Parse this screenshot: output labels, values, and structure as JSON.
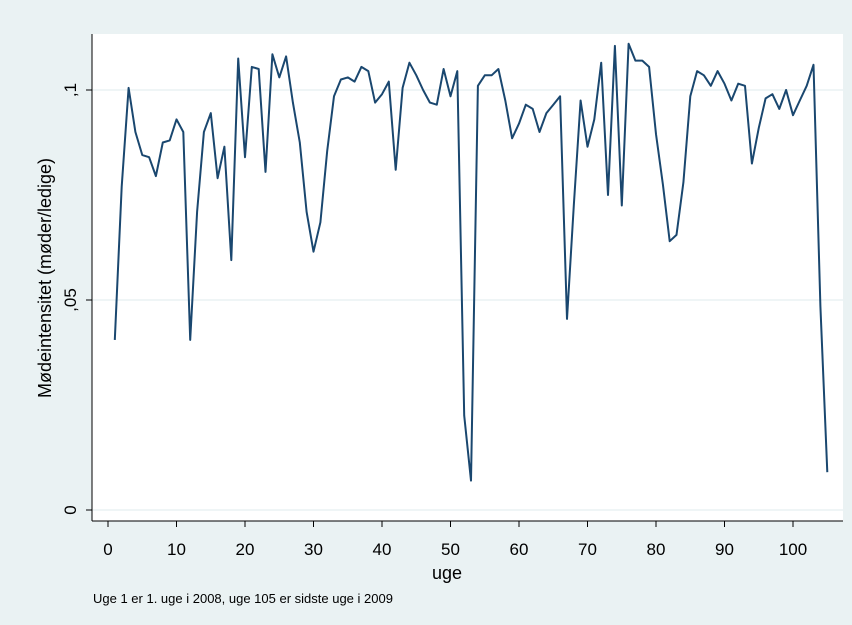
{
  "chart_data": {
    "type": "line",
    "xlabel": "uge",
    "ylabel": "Mødeintensitet (møder/ledige)",
    "note": "Uge 1 er 1. uge i 2008, uge 105 er sidste uge i 2009",
    "xlim": [
      1,
      105
    ],
    "ylim": [
      0,
      0.11
    ],
    "x_ticks": [
      0,
      10,
      20,
      30,
      40,
      50,
      60,
      70,
      80,
      90,
      100
    ],
    "x_tick_labels": [
      "0",
      "10",
      "20",
      "30",
      "40",
      "50",
      "60",
      "70",
      "80",
      "90",
      "100"
    ],
    "y_ticks": [
      0,
      0.05,
      0.1
    ],
    "y_tick_labels": [
      "0",
      ",05",
      ",1"
    ],
    "grid": true,
    "colors": {
      "line": "#1a476f",
      "plot_bg": "#ffffff",
      "outer_bg": "#eaf2f3",
      "grid": "#eaf2f3"
    },
    "series": [
      {
        "x": [
          1,
          2,
          3,
          4,
          5,
          6,
          7,
          8,
          9,
          10,
          11,
          12,
          13,
          14,
          15,
          16,
          17,
          18,
          19,
          20,
          21,
          22,
          23,
          24,
          25,
          26,
          27,
          28,
          29,
          30,
          31,
          32,
          33,
          34,
          35,
          36,
          37,
          38,
          39,
          40,
          41,
          42,
          43,
          44,
          45,
          46,
          47,
          48,
          49,
          50,
          51,
          52,
          53,
          54,
          55,
          56,
          57,
          58,
          59,
          60,
          61,
          62,
          63,
          64,
          65,
          66,
          67,
          68,
          69,
          70,
          71,
          72,
          73,
          74,
          75,
          76,
          77,
          78,
          79,
          80,
          81,
          82,
          83,
          84,
          85,
          86,
          87,
          88,
          89,
          90,
          91,
          92,
          93,
          94,
          95,
          96,
          97,
          98,
          99,
          100,
          101,
          102,
          103,
          104,
          105
        ],
        "values": [
          0.0405,
          0.077,
          0.1005,
          0.09,
          0.0845,
          0.084,
          0.0795,
          0.0875,
          0.088,
          0.093,
          0.09,
          0.0405,
          0.071,
          0.09,
          0.0945,
          0.079,
          0.0865,
          0.0595,
          0.1075,
          0.084,
          0.1055,
          0.105,
          0.0805,
          0.1085,
          0.103,
          0.108,
          0.097,
          0.0875,
          0.071,
          0.0615,
          0.0685,
          0.0855,
          0.0985,
          0.1025,
          0.103,
          0.102,
          0.1055,
          0.1045,
          0.097,
          0.099,
          0.102,
          0.081,
          0.1005,
          0.1065,
          0.1035,
          0.1,
          0.097,
          0.0965,
          0.105,
          0.0985,
          0.1045,
          0.0225,
          0.007,
          0.101,
          0.1035,
          0.1035,
          0.105,
          0.0975,
          0.0885,
          0.092,
          0.0965,
          0.0955,
          0.09,
          0.0945,
          0.0965,
          0.0985,
          0.0455,
          0.0725,
          0.0975,
          0.0865,
          0.093,
          0.1065,
          0.075,
          0.1105,
          0.0725,
          0.111,
          0.107,
          0.107,
          0.1055,
          0.0895,
          0.0775,
          0.064,
          0.0655,
          0.078,
          0.0985,
          0.1045,
          0.1035,
          0.101,
          0.1045,
          0.1015,
          0.0975,
          0.1015,
          0.101,
          0.0825,
          0.091,
          0.098,
          0.099,
          0.0955,
          0.1,
          0.094,
          0.0975,
          0.101,
          0.106,
          0.0485,
          0.009
        ]
      }
    ]
  }
}
